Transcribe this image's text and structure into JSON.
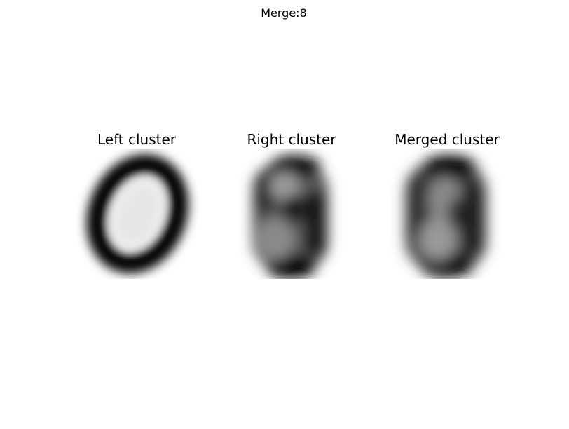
{
  "figure": {
    "suptitle": "Merge:8"
  },
  "panels": [
    {
      "title": "Left cluster",
      "image": "mean-digit-0-image"
    },
    {
      "title": "Right cluster",
      "image": "mean-digit-8-image"
    },
    {
      "title": "Merged cluster",
      "image": "mean-digit-8-merged-image"
    }
  ]
}
